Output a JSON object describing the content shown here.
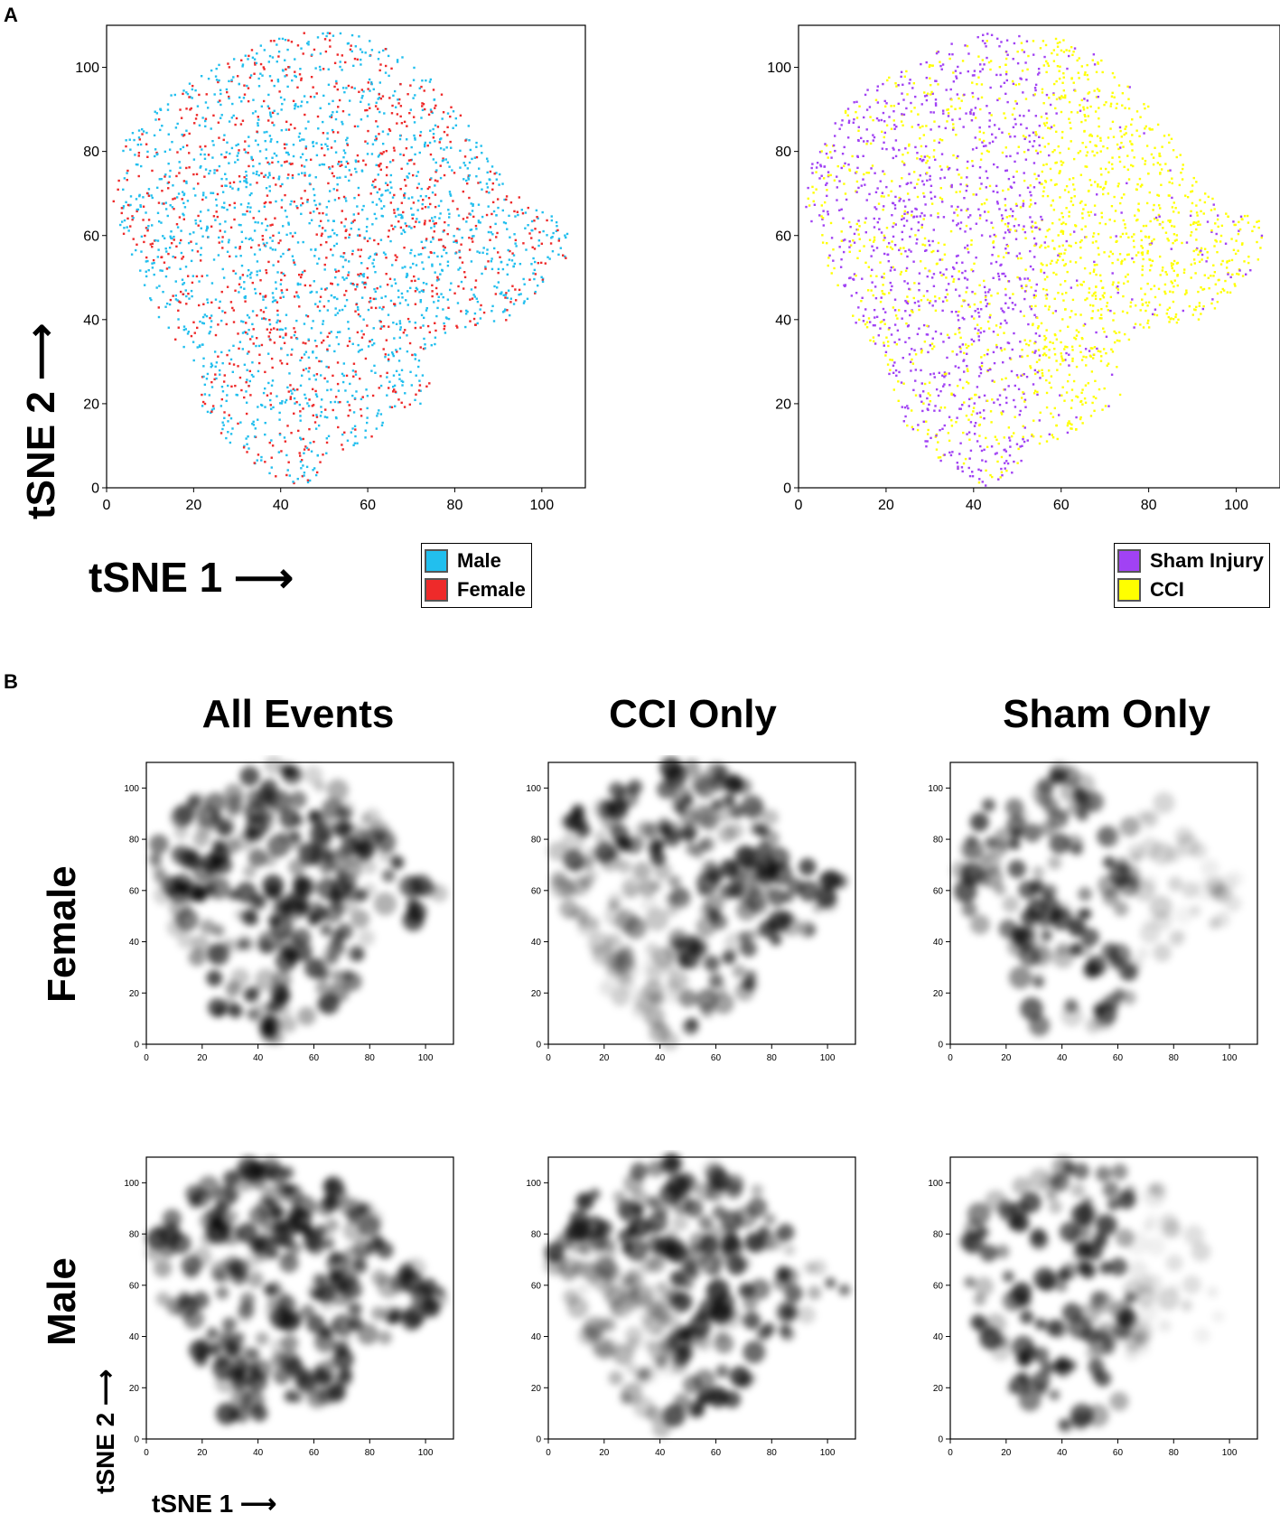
{
  "panel_labels": {
    "a": "A",
    "b": "B"
  },
  "axis_labels": {
    "x": "tSNE 1 ⟶",
    "y": "tSNE 2 ⟶"
  },
  "panel_b": {
    "column_titles": [
      "All Events",
      "CCI Only",
      "Sham Only"
    ],
    "row_labels": [
      "Female",
      "Male"
    ]
  },
  "legends": {
    "sex": [
      {
        "label": "Male",
        "color": "#22bfee"
      },
      {
        "label": "Female",
        "color": "#ee2a2a"
      }
    ],
    "injury": [
      {
        "label": "Sham Injury",
        "color": "#a142f4"
      },
      {
        "label": "CCI",
        "color": "#ffff00"
      }
    ]
  },
  "chart_data": [
    {
      "type": "scatter",
      "title": "",
      "xlabel": "tSNE 1 ⟶",
      "ylabel": "tSNE 2 ⟶",
      "xlim": [
        0,
        110
      ],
      "ylim": [
        0,
        110
      ],
      "x_ticks": [
        0,
        20,
        40,
        60,
        80,
        100
      ],
      "y_ticks": [
        0,
        20,
        40,
        60,
        80,
        100
      ],
      "series": [
        {
          "name": "Male",
          "color": "#22bfee"
        },
        {
          "name": "Female",
          "color": "#ee2a2a"
        }
      ]
    },
    {
      "type": "scatter",
      "title": "",
      "xlim": [
        0,
        110
      ],
      "ylim": [
        0,
        110
      ],
      "x_ticks": [
        0,
        20,
        40,
        60,
        80,
        100
      ],
      "y_ticks": [
        0,
        20,
        40,
        60,
        80,
        100
      ],
      "series": [
        {
          "name": "Sham Injury",
          "color": "#a142f4"
        },
        {
          "name": "CCI",
          "color": "#ffff00"
        }
      ]
    },
    {
      "type": "heatmap",
      "title": "Female — All Events",
      "xlim": [
        0,
        110
      ],
      "ylim": [
        0,
        110
      ],
      "x_ticks": [
        0,
        20,
        40,
        60,
        80,
        100
      ],
      "y_ticks": [
        0,
        20,
        40,
        60,
        80,
        100
      ]
    },
    {
      "type": "heatmap",
      "title": "Female — CCI Only",
      "xlim": [
        0,
        110
      ],
      "ylim": [
        0,
        110
      ],
      "x_ticks": [
        0,
        20,
        40,
        60,
        80,
        100
      ],
      "y_ticks": [
        0,
        20,
        40,
        60,
        80,
        100
      ]
    },
    {
      "type": "heatmap",
      "title": "Female — Sham Only",
      "xlim": [
        0,
        110
      ],
      "ylim": [
        0,
        110
      ],
      "x_ticks": [
        0,
        20,
        40,
        60,
        80,
        100
      ],
      "y_ticks": [
        0,
        20,
        40,
        60,
        80,
        100
      ]
    },
    {
      "type": "heatmap",
      "title": "Male — All Events",
      "xlim": [
        0,
        110
      ],
      "ylim": [
        0,
        110
      ],
      "x_ticks": [
        0,
        20,
        40,
        60,
        80,
        100
      ],
      "y_ticks": [
        0,
        20,
        40,
        60,
        80,
        100
      ]
    },
    {
      "type": "heatmap",
      "title": "Male — CCI Only",
      "xlim": [
        0,
        110
      ],
      "ylim": [
        0,
        110
      ],
      "x_ticks": [
        0,
        20,
        40,
        60,
        80,
        100
      ],
      "y_ticks": [
        0,
        20,
        40,
        60,
        80,
        100
      ]
    },
    {
      "type": "heatmap",
      "title": "Male — Sham Only",
      "xlim": [
        0,
        110
      ],
      "ylim": [
        0,
        110
      ],
      "x_ticks": [
        0,
        20,
        40,
        60,
        80,
        100
      ],
      "y_ticks": [
        0,
        20,
        40,
        60,
        80,
        100
      ]
    }
  ]
}
